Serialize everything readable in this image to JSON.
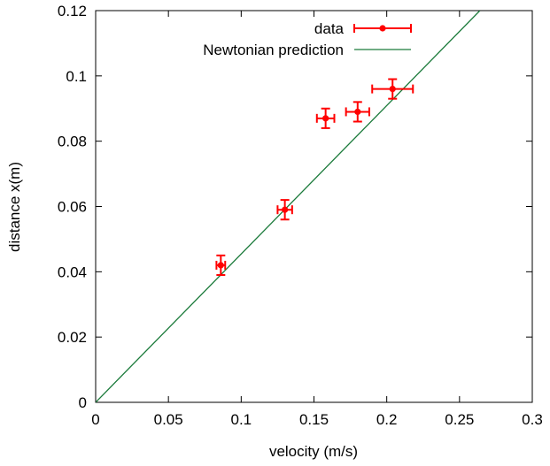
{
  "chart_data": {
    "type": "scatter",
    "xlabel": "velocity (m/s)",
    "ylabel": "distance x(m)",
    "xlim": [
      0,
      0.3
    ],
    "ylim": [
      0,
      0.12
    ],
    "x_ticks": [
      "0",
      "0.05",
      "0.1",
      "0.15",
      "0.2",
      "0.25",
      "0.3"
    ],
    "y_ticks": [
      "0",
      "0.02",
      "0.04",
      "0.06",
      "0.08",
      "0.1",
      "0.12"
    ],
    "x_tick_values": [
      0,
      0.05,
      0.1,
      0.15,
      0.2,
      0.25,
      0.3
    ],
    "y_tick_values": [
      0,
      0.02,
      0.04,
      0.06,
      0.08,
      0.1,
      0.12
    ],
    "grid": false,
    "legend_position": "top-right",
    "series": [
      {
        "name": "data",
        "type": "scatter-errorbars",
        "color": "#ff0000",
        "points": [
          {
            "x": 0.086,
            "y": 0.042,
            "xerr": 0.003,
            "yerr": 0.003
          },
          {
            "x": 0.13,
            "y": 0.059,
            "xerr": 0.005,
            "yerr": 0.003
          },
          {
            "x": 0.158,
            "y": 0.087,
            "xerr": 0.006,
            "yerr": 0.003
          },
          {
            "x": 0.18,
            "y": 0.089,
            "xerr": 0.008,
            "yerr": 0.003
          },
          {
            "x": 0.204,
            "y": 0.096,
            "xerr": 0.014,
            "yerr": 0.003
          }
        ]
      },
      {
        "name": "Newtonian prediction",
        "type": "line",
        "color": "#1a7a3a",
        "x": [
          0,
          0.264
        ],
        "y": [
          0,
          0.12
        ]
      }
    ]
  }
}
